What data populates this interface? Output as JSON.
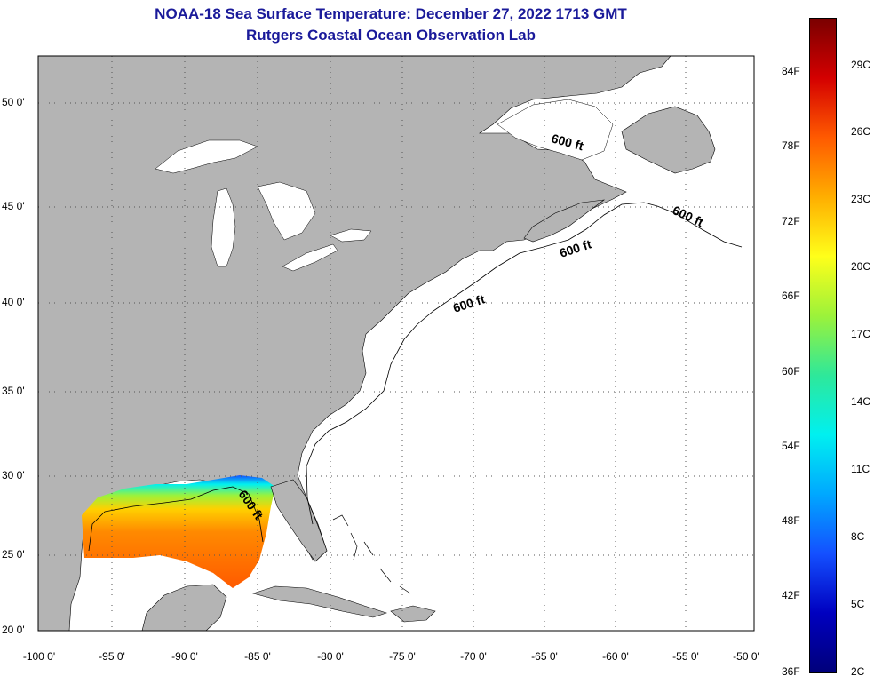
{
  "title_line1": "NOAA-18 Sea Surface Temperature:  December 27, 2022 1713 GMT",
  "title_line2": "Rutgers Coastal Ocean Observation Lab",
  "lat_labels": [
    "50 0'",
    "45 0'",
    "40 0'",
    "35 0'",
    "30 0'",
    "25 0'",
    "20 0'"
  ],
  "lon_labels": [
    "-100 0'",
    "-95 0'",
    "-90 0'",
    "-85 0'",
    "-80 0'",
    "-75 0'",
    "-70 0'",
    "-65 0'",
    "-60 0'",
    "-55 0'",
    "-50 0'"
  ],
  "contour_labels": [
    "600 ft",
    "600 ft",
    "600 ft",
    "600 ft",
    "600 ft"
  ],
  "colorbar": {
    "fahrenheit": [
      "84F",
      "78F",
      "72F",
      "66F",
      "60F",
      "54F",
      "48F",
      "42F",
      "36F"
    ],
    "celsius": [
      "29C",
      "26C",
      "23C",
      "20C",
      "17C",
      "14C",
      "11C",
      "8C",
      "5C",
      "2C"
    ],
    "gradient_colors": [
      "#7a0000",
      "#d40000",
      "#ff5a00",
      "#ffae00",
      "#ffff1a",
      "#9cf23a",
      "#2ee89a",
      "#00f0f0",
      "#00a8ff",
      "#1450ff",
      "#0000c0",
      "#00007a"
    ]
  },
  "colors": {
    "land": "#b4b4b4",
    "ocean": "#ffffff",
    "title": "#1a1a9a",
    "grid": "#555555"
  }
}
